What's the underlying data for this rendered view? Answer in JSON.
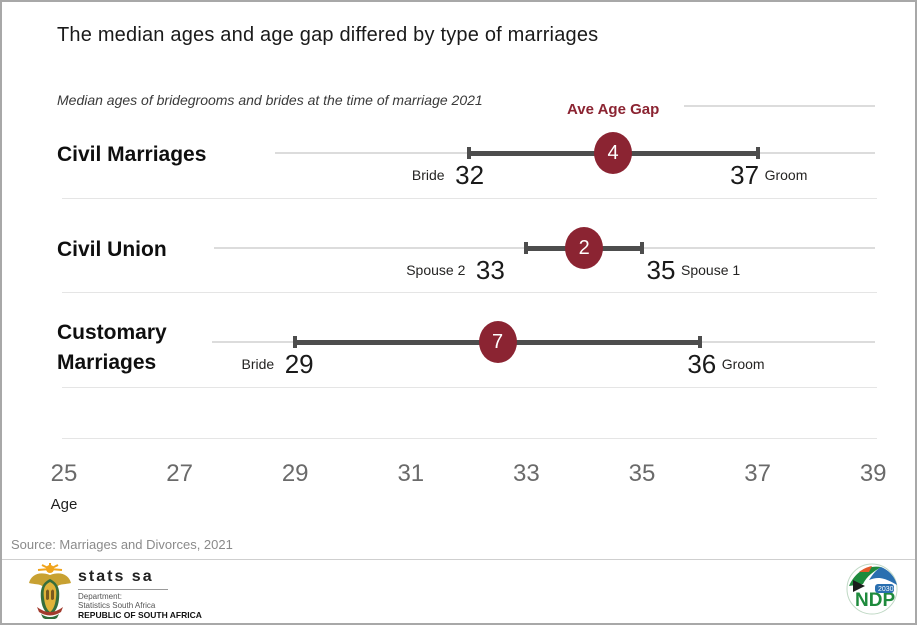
{
  "chart_data": {
    "type": "dumbbell",
    "title": "The median ages and age gap differed by type of marriages",
    "subtitle": "Median ages of bridegrooms and brides at the time of marriage 2021",
    "gap_label": "Ave Age Gap",
    "axis": {
      "label": "Age",
      "ticks": [
        25,
        27,
        29,
        31,
        33,
        35,
        37,
        39
      ],
      "min": 25,
      "max": 39,
      "grid": false
    },
    "rows": [
      {
        "category": "Civil Marriages",
        "left_label": "Bride",
        "left_value": 32,
        "right_label": "Groom",
        "right_value": 37,
        "gap": 4
      },
      {
        "category": "Civil Union",
        "left_label": "Spouse 2",
        "left_value": 33,
        "right_label": "Spouse 1",
        "right_value": 35,
        "gap": 2
      },
      {
        "category": "Customary Marriages",
        "left_label": "Bride",
        "left_value": 29,
        "right_label": "Groom",
        "right_value": 36,
        "gap": 7
      }
    ],
    "source": "Source: Marriages and Divorces, 2021",
    "legend_position": "none"
  },
  "footer": {
    "statssa": {
      "brand": "stats sa",
      "dept_line1": "Department:",
      "dept_line2": "Statistics South Africa",
      "dept_line3": "REPUBLIC OF SOUTH AFRICA",
      "emblem_icon": "south-africa-coat-of-arms-icon"
    },
    "ndp": {
      "acronym": "NDP",
      "year": "2030",
      "emblem_icon": "ndp-2030-flag-roundel-icon"
    }
  },
  "colors": {
    "accent_maroon": "#8b2432",
    "bar_dark": "#4d4d4d",
    "row_line_light": "#dcdcdc",
    "separator": "#e5e5e5",
    "axis_text": "#6a6a6a",
    "title_text": "#1a1a1a",
    "muted_text": "#8a8a8a",
    "ndp_green": "#1e8a3c",
    "ndp_blue": "#2a6fb0"
  }
}
